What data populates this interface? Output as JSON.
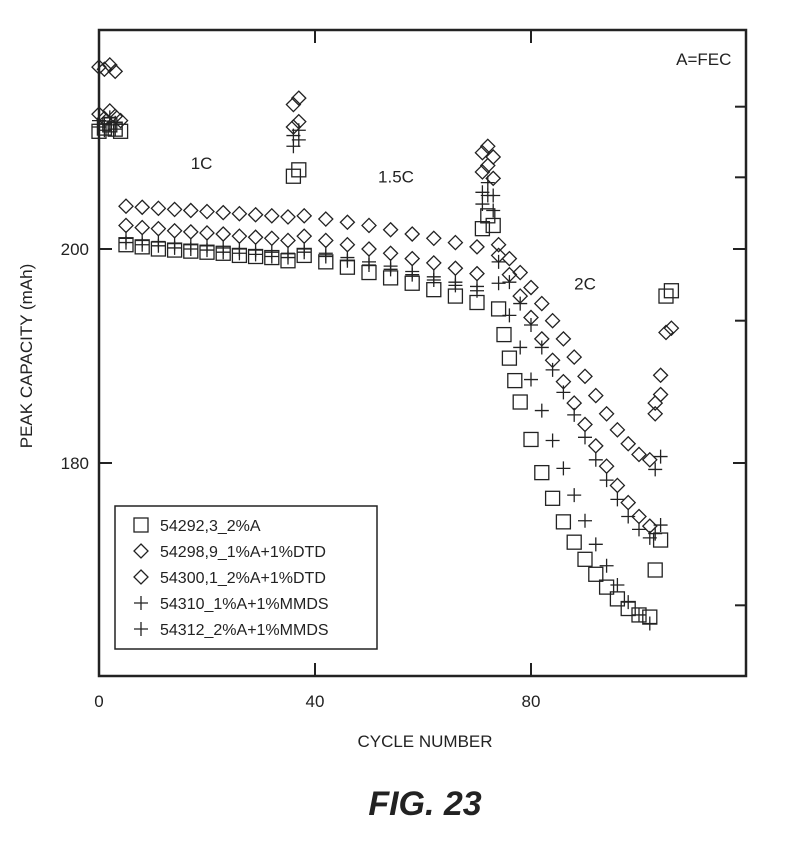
{
  "chart_data": {
    "type": "scatter",
    "title": "",
    "xlabel": "CYCLE NUMBER",
    "ylabel": "PEAK CAPACITY (mAh)",
    "xlim": [
      0,
      120
    ],
    "ylim": [
      160,
      220
    ],
    "x_ticks": [
      0,
      40,
      80
    ],
    "y_ticks": [
      180,
      200
    ],
    "y_minor_ticks": [
      166.7,
      193.3,
      206.7,
      213.3
    ],
    "grid": false,
    "legend_position": "bottom-left",
    "annotations": [
      {
        "text": "A=FEC",
        "x": 112,
        "y": 217.2
      },
      {
        "text": "1C",
        "x": 19,
        "y": 207.5
      },
      {
        "text": "1.5C",
        "x": 55,
        "y": 206.2
      },
      {
        "text": "2C",
        "x": 90,
        "y": 196.2
      }
    ],
    "series": [
      {
        "name": "54292,3_2%A",
        "marker": "square",
        "points": [
          [
            0,
            211.0
          ],
          [
            1,
            211.3
          ],
          [
            2,
            211.6
          ],
          [
            3,
            211.2
          ],
          [
            4,
            211.0
          ],
          [
            5,
            200.4
          ],
          [
            8,
            200.2
          ],
          [
            11,
            200.0
          ],
          [
            14,
            199.9
          ],
          [
            17,
            199.8
          ],
          [
            20,
            199.7
          ],
          [
            23,
            199.6
          ],
          [
            26,
            199.4
          ],
          [
            29,
            199.3
          ],
          [
            32,
            199.2
          ],
          [
            35,
            198.9
          ],
          [
            36,
            206.8
          ],
          [
            37,
            207.4
          ],
          [
            38,
            199.4
          ],
          [
            42,
            198.8
          ],
          [
            46,
            198.3
          ],
          [
            50,
            197.8
          ],
          [
            54,
            197.3
          ],
          [
            58,
            196.8
          ],
          [
            62,
            196.2
          ],
          [
            66,
            195.6
          ],
          [
            70,
            195.0
          ],
          [
            71,
            201.9
          ],
          [
            72,
            203.1
          ],
          [
            73,
            202.2
          ],
          [
            74,
            194.4
          ],
          [
            75,
            192.0
          ],
          [
            76,
            189.8
          ],
          [
            77,
            187.7
          ],
          [
            78,
            185.7
          ],
          [
            80,
            182.2
          ],
          [
            82,
            179.1
          ],
          [
            84,
            176.7
          ],
          [
            86,
            174.5
          ],
          [
            88,
            172.6
          ],
          [
            90,
            171.0
          ],
          [
            92,
            169.6
          ],
          [
            94,
            168.4
          ],
          [
            96,
            167.3
          ],
          [
            98,
            166.4
          ],
          [
            100,
            165.8
          ],
          [
            102,
            165.6
          ],
          [
            103,
            170.0
          ],
          [
            104,
            172.8
          ],
          [
            105,
            195.6
          ],
          [
            106,
            196.1
          ]
        ]
      },
      {
        "name": "54298,9_1%A+1%DTD",
        "marker": "diamond",
        "points": [
          [
            0,
            217.0
          ],
          [
            1,
            216.8
          ],
          [
            2,
            217.2
          ],
          [
            3,
            216.6
          ],
          [
            4,
            212.0
          ],
          [
            5,
            204.0
          ],
          [
            8,
            203.9
          ],
          [
            11,
            203.8
          ],
          [
            14,
            203.7
          ],
          [
            17,
            203.6
          ],
          [
            20,
            203.5
          ],
          [
            23,
            203.4
          ],
          [
            26,
            203.3
          ],
          [
            29,
            203.2
          ],
          [
            32,
            203.1
          ],
          [
            35,
            203.0
          ],
          [
            36,
            213.5
          ],
          [
            37,
            214.1
          ],
          [
            38,
            203.1
          ],
          [
            42,
            202.8
          ],
          [
            46,
            202.5
          ],
          [
            50,
            202.2
          ],
          [
            54,
            201.8
          ],
          [
            58,
            201.4
          ],
          [
            62,
            201.0
          ],
          [
            66,
            200.6
          ],
          [
            70,
            200.2
          ],
          [
            71,
            209.0
          ],
          [
            72,
            209.6
          ],
          [
            73,
            208.6
          ],
          [
            74,
            200.4
          ],
          [
            76,
            199.1
          ],
          [
            78,
            197.8
          ],
          [
            80,
            196.4
          ],
          [
            82,
            194.9
          ],
          [
            84,
            193.3
          ],
          [
            86,
            191.6
          ],
          [
            88,
            189.9
          ],
          [
            90,
            188.1
          ],
          [
            92,
            186.3
          ],
          [
            94,
            184.6
          ],
          [
            96,
            183.1
          ],
          [
            98,
            181.8
          ],
          [
            100,
            180.8
          ],
          [
            102,
            180.3
          ],
          [
            103,
            185.6
          ],
          [
            104,
            188.2
          ],
          [
            105,
            192.2
          ],
          [
            106,
            192.6
          ]
        ]
      },
      {
        "name": "54300,1_2%A+1%DTD",
        "marker": "diamond",
        "points": [
          [
            0,
            212.6
          ],
          [
            1,
            212.2
          ],
          [
            2,
            212.9
          ],
          [
            3,
            212.4
          ],
          [
            5,
            202.2
          ],
          [
            8,
            202.0
          ],
          [
            11,
            201.9
          ],
          [
            14,
            201.7
          ],
          [
            17,
            201.6
          ],
          [
            20,
            201.5
          ],
          [
            23,
            201.4
          ],
          [
            26,
            201.2
          ],
          [
            29,
            201.1
          ],
          [
            32,
            201.0
          ],
          [
            35,
            200.8
          ],
          [
            36,
            211.4
          ],
          [
            37,
            211.9
          ],
          [
            38,
            201.2
          ],
          [
            42,
            200.8
          ],
          [
            46,
            200.4
          ],
          [
            50,
            200.0
          ],
          [
            54,
            199.6
          ],
          [
            58,
            199.1
          ],
          [
            62,
            198.7
          ],
          [
            66,
            198.2
          ],
          [
            70,
            197.7
          ],
          [
            71,
            207.2
          ],
          [
            72,
            207.8
          ],
          [
            73,
            206.6
          ],
          [
            74,
            199.4
          ],
          [
            76,
            197.6
          ],
          [
            78,
            195.6
          ],
          [
            80,
            193.6
          ],
          [
            82,
            191.6
          ],
          [
            84,
            189.6
          ],
          [
            86,
            187.6
          ],
          [
            88,
            185.6
          ],
          [
            90,
            183.6
          ],
          [
            92,
            181.6
          ],
          [
            94,
            179.7
          ],
          [
            96,
            177.9
          ],
          [
            98,
            176.3
          ],
          [
            100,
            175.0
          ],
          [
            102,
            174.1
          ],
          [
            103,
            184.6
          ],
          [
            104,
            186.4
          ]
        ]
      },
      {
        "name": "54310_1%A+1%MMDS",
        "marker": "plus",
        "points": [
          [
            0,
            212.0
          ],
          [
            1,
            211.7
          ],
          [
            2,
            212.3
          ],
          [
            3,
            211.8
          ],
          [
            5,
            201.0
          ],
          [
            8,
            200.8
          ],
          [
            11,
            200.7
          ],
          [
            14,
            200.5
          ],
          [
            17,
            200.4
          ],
          [
            20,
            200.3
          ],
          [
            23,
            200.1
          ],
          [
            26,
            200.0
          ],
          [
            29,
            199.9
          ],
          [
            32,
            199.7
          ],
          [
            35,
            199.6
          ],
          [
            36,
            210.6
          ],
          [
            37,
            211.1
          ],
          [
            38,
            200.0
          ],
          [
            42,
            199.6
          ],
          [
            46,
            199.2
          ],
          [
            50,
            198.8
          ],
          [
            54,
            198.4
          ],
          [
            58,
            197.9
          ],
          [
            62,
            197.4
          ],
          [
            66,
            196.9
          ],
          [
            70,
            196.5
          ],
          [
            71,
            205.3
          ],
          [
            72,
            206.2
          ],
          [
            73,
            205.0
          ],
          [
            74,
            198.8
          ],
          [
            76,
            196.9
          ],
          [
            78,
            194.9
          ],
          [
            80,
            192.9
          ],
          [
            82,
            190.8
          ],
          [
            84,
            188.7
          ],
          [
            86,
            186.6
          ],
          [
            88,
            184.5
          ],
          [
            90,
            182.4
          ],
          [
            92,
            180.3
          ],
          [
            94,
            178.4
          ],
          [
            96,
            176.6
          ],
          [
            98,
            175.0
          ],
          [
            100,
            173.8
          ],
          [
            102,
            173.0
          ],
          [
            103,
            179.4
          ],
          [
            104,
            180.6
          ]
        ]
      },
      {
        "name": "54312_2%A+1%MMDS",
        "marker": "thick-plus",
        "points": [
          [
            0,
            211.4
          ],
          [
            1,
            211.1
          ],
          [
            2,
            211.6
          ],
          [
            3,
            211.2
          ],
          [
            5,
            200.6
          ],
          [
            8,
            200.4
          ],
          [
            11,
            200.3
          ],
          [
            14,
            200.1
          ],
          [
            17,
            200.0
          ],
          [
            20,
            199.9
          ],
          [
            23,
            199.7
          ],
          [
            26,
            199.6
          ],
          [
            29,
            199.5
          ],
          [
            32,
            199.3
          ],
          [
            35,
            199.2
          ],
          [
            36,
            209.6
          ],
          [
            37,
            210.2
          ],
          [
            38,
            199.7
          ],
          [
            42,
            199.3
          ],
          [
            46,
            198.9
          ],
          [
            50,
            198.5
          ],
          [
            54,
            198.1
          ],
          [
            58,
            197.6
          ],
          [
            62,
            197.1
          ],
          [
            66,
            196.6
          ],
          [
            70,
            196.1
          ],
          [
            71,
            204.2
          ],
          [
            72,
            205.0
          ],
          [
            73,
            203.6
          ],
          [
            74,
            196.8
          ],
          [
            76,
            193.8
          ],
          [
            78,
            190.8
          ],
          [
            80,
            187.8
          ],
          [
            82,
            184.9
          ],
          [
            84,
            182.1
          ],
          [
            86,
            179.5
          ],
          [
            88,
            177.0
          ],
          [
            90,
            174.6
          ],
          [
            92,
            172.4
          ],
          [
            94,
            170.4
          ],
          [
            96,
            168.6
          ],
          [
            98,
            167.0
          ],
          [
            100,
            165.8
          ],
          [
            102,
            165.0
          ],
          [
            103,
            173.4
          ],
          [
            104,
            174.2
          ]
        ]
      }
    ]
  },
  "caption": "FIG. 23"
}
